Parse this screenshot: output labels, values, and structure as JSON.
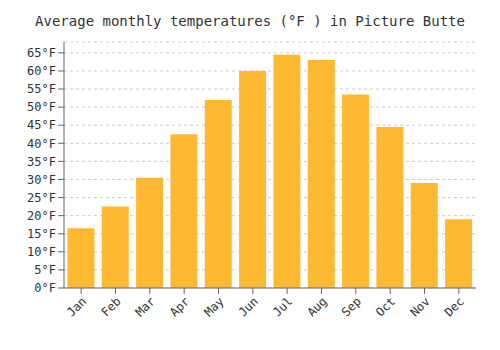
{
  "chart_data": {
    "type": "bar",
    "title": "Average monthly temperatures (°F ) in Picture Butte",
    "categories": [
      "Jan",
      "Feb",
      "Mar",
      "Apr",
      "May",
      "Jun",
      "Jul",
      "Aug",
      "Sep",
      "Oct",
      "Nov",
      "Dec"
    ],
    "values": [
      16.5,
      22.5,
      30.5,
      42.5,
      52.0,
      60.0,
      64.5,
      63.0,
      53.5,
      44.5,
      29.0,
      19.0
    ],
    "color": "#FDB931",
    "ylim": [
      0,
      68
    ],
    "yticks": [
      {
        "value": 0,
        "label": "0°F"
      },
      {
        "value": 5,
        "label": "5°F"
      },
      {
        "value": 10,
        "label": "10°F"
      },
      {
        "value": 15,
        "label": "15°F"
      },
      {
        "value": 20,
        "label": "20°F"
      },
      {
        "value": 25,
        "label": "25°F"
      },
      {
        "value": 30,
        "label": "30°F"
      },
      {
        "value": 35,
        "label": "35°F"
      },
      {
        "value": 40,
        "label": "40°F"
      },
      {
        "value": 45,
        "label": "45°F"
      },
      {
        "value": 50,
        "label": "50°F"
      },
      {
        "value": 55,
        "label": "55°F"
      },
      {
        "value": 60,
        "label": "60°F"
      },
      {
        "value": 65,
        "label": "65°F"
      }
    ],
    "grid": true
  }
}
